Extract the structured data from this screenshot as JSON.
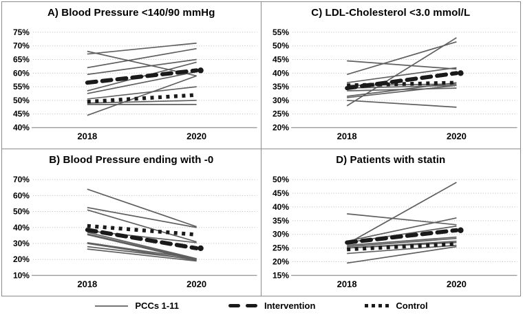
{
  "colors": {
    "pcc_line": "#5f5f5f",
    "intervention": "#1a1a1a",
    "control": "#1a1a1a",
    "gridline": "#b8b8b8",
    "axis": "#9a9a9a",
    "border": "#8a8a8a",
    "text": "#000000",
    "background": "#ffffff"
  },
  "legend": {
    "items": [
      {
        "label": "PCCs 1-11",
        "style": "thin-solid"
      },
      {
        "label": "Intervention",
        "style": "thick-dashed"
      },
      {
        "label": "Control",
        "style": "thick-dotted"
      }
    ]
  },
  "chart_data": [
    {
      "id": "A",
      "type": "line",
      "title": "A) Blood Pressure <140/90 mmHg",
      "x_labels": [
        "2018",
        "2020"
      ],
      "ylim": [
        40,
        75
      ],
      "ytick_step": 5,
      "ytick_labels": [
        "40%",
        "45%",
        "50%",
        "55%",
        "60%",
        "65%",
        "70%",
        "75%"
      ],
      "grid": true,
      "series": [
        {
          "name": "PCCs 1-11",
          "style": "thin-solid",
          "lines": [
            [
              68,
              59
            ],
            [
              67,
              71
            ],
            [
              62,
              69
            ],
            [
              59.5,
              65
            ],
            [
              53.5,
              64
            ],
            [
              52.5,
              60.5
            ],
            [
              50.5,
              55
            ],
            [
              49,
              50
            ],
            [
              48.5,
              48.5
            ],
            [
              44.5,
              59
            ]
          ]
        },
        {
          "name": "Intervention",
          "style": "thick-dashed",
          "values": [
            56.5,
            61
          ]
        },
        {
          "name": "Control",
          "style": "thick-dotted",
          "values": [
            49.5,
            52
          ]
        }
      ]
    },
    {
      "id": "C",
      "type": "line",
      "title": "C) LDL-Cholesterol <3.0 mmol/L",
      "x_labels": [
        "2018",
        "2020"
      ],
      "ylim": [
        20,
        55
      ],
      "ytick_step": 5,
      "ytick_labels": [
        "20%",
        "25%",
        "30%",
        "35%",
        "40%",
        "45%",
        "50%",
        "55%"
      ],
      "grid": true,
      "series": [
        {
          "name": "PCCs 1-11",
          "style": "thin-solid",
          "lines": [
            [
              44.5,
              41.5
            ],
            [
              39.5,
              51.5
            ],
            [
              36.5,
              42
            ],
            [
              35.5,
              36
            ],
            [
              34.5,
              35.5
            ],
            [
              33.5,
              34.5
            ],
            [
              31.5,
              36.5
            ],
            [
              31,
              35.5
            ],
            [
              30,
              27.5
            ],
            [
              28,
              53
            ]
          ]
        },
        {
          "name": "Intervention",
          "style": "thick-dashed",
          "values": [
            34.5,
            40
          ]
        },
        {
          "name": "Control",
          "style": "thick-dotted",
          "values": [
            35.5,
            36.5
          ]
        }
      ]
    },
    {
      "id": "B",
      "type": "line",
      "title": "B) Blood Pressure ending with -0",
      "x_labels": [
        "2018",
        "2020"
      ],
      "ylim": [
        10,
        70
      ],
      "ytick_step": 10,
      "ytick_labels": [
        "10%",
        "20%",
        "30%",
        "40%",
        "50%",
        "60%",
        "70%"
      ],
      "grid": true,
      "series": [
        {
          "name": "PCCs 1-11",
          "style": "thin-solid",
          "lines": [
            [
              64,
              40.5
            ],
            [
              52.5,
              40
            ],
            [
              51,
              31
            ],
            [
              38,
              30.5
            ],
            [
              37,
              20.5
            ],
            [
              36,
              20
            ],
            [
              35.5,
              19.5
            ],
            [
              30.5,
              20.5
            ],
            [
              30,
              19.5
            ],
            [
              28,
              20
            ],
            [
              26.5,
              19
            ]
          ]
        },
        {
          "name": "Intervention",
          "style": "thick-dashed",
          "values": [
            38.5,
            27
          ]
        },
        {
          "name": "Control",
          "style": "thick-dotted",
          "values": [
            41,
            35.5
          ]
        }
      ]
    },
    {
      "id": "D",
      "type": "line",
      "title": "D) Patients with statin",
      "x_labels": [
        "2018",
        "2020"
      ],
      "ylim": [
        15,
        50
      ],
      "ytick_step": 5,
      "ytick_labels": [
        "15%",
        "20%",
        "25%",
        "30%",
        "35%",
        "40%",
        "45%",
        "50%"
      ],
      "grid": true,
      "series": [
        {
          "name": "PCCs 1-11",
          "style": "thin-solid",
          "lines": [
            [
              37.5,
              33.5
            ],
            [
              26.5,
              49
            ],
            [
              27.5,
              36
            ],
            [
              27,
              33
            ],
            [
              26,
              29
            ],
            [
              25.5,
              28.5
            ],
            [
              25,
              27.5
            ],
            [
              25,
              27
            ],
            [
              23,
              26
            ],
            [
              19.5,
              25.5
            ]
          ]
        },
        {
          "name": "Intervention",
          "style": "thick-dashed",
          "values": [
            27,
            31.5
          ]
        },
        {
          "name": "Control",
          "style": "thick-dotted",
          "values": [
            24.5,
            26.5
          ]
        }
      ]
    }
  ]
}
